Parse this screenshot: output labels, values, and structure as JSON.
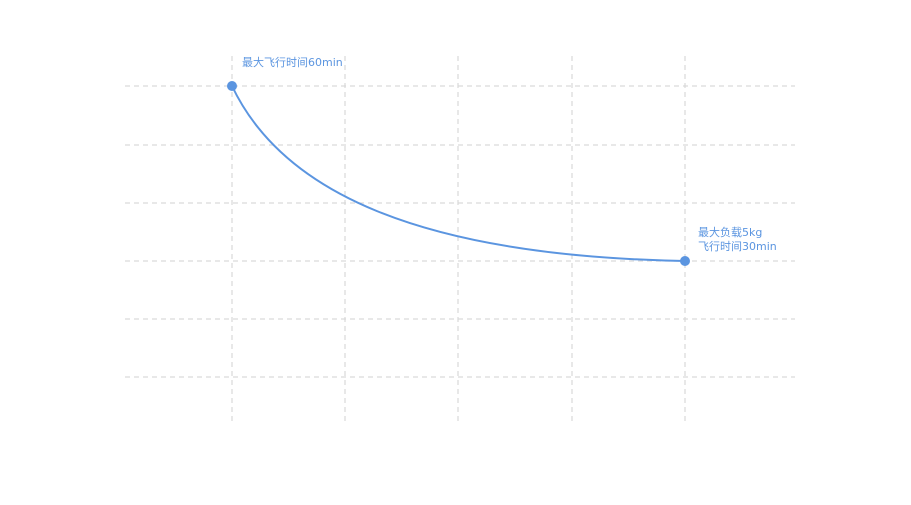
{
  "chart_data": {
    "type": "line",
    "title": "",
    "xlabel": "",
    "ylabel": "",
    "grid": true,
    "color": "#5b95e0",
    "series": [
      {
        "points": [
          {
            "x": 1,
            "y": 60
          },
          {
            "x": 5,
            "y": 30
          }
        ]
      }
    ],
    "annotations": [
      {
        "point": 0,
        "lines": [
          "最大飞行时间60min"
        ]
      },
      {
        "point": 1,
        "lines": [
          "最大负载5kg",
          "飞行时间30min"
        ]
      }
    ]
  }
}
